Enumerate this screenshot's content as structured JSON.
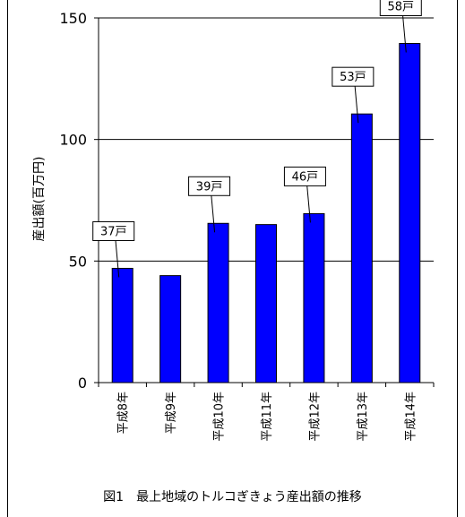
{
  "chart_data": {
    "type": "bar",
    "categories": [
      "平成8年",
      "平成9年",
      "平成10年",
      "平成11年",
      "平成12年",
      "平成13年",
      "平成14年"
    ],
    "values": [
      47,
      44,
      65.5,
      65,
      69.5,
      110.5,
      139.5
    ],
    "ylabel": "産出額(百万円)",
    "ylim": [
      0,
      150
    ],
    "yticks": [
      0,
      50,
      100,
      150
    ],
    "grid": true,
    "bar_color": "#0000ff",
    "annotations": [
      {
        "category_index": 0,
        "text": "37戸"
      },
      {
        "category_index": 2,
        "text": "39戸"
      },
      {
        "category_index": 4,
        "text": "46戸"
      },
      {
        "category_index": 5,
        "text": "53戸"
      },
      {
        "category_index": 6,
        "text": "58戸"
      }
    ]
  },
  "caption": "図1　最上地域のトルコぎきょう産出額の推移"
}
